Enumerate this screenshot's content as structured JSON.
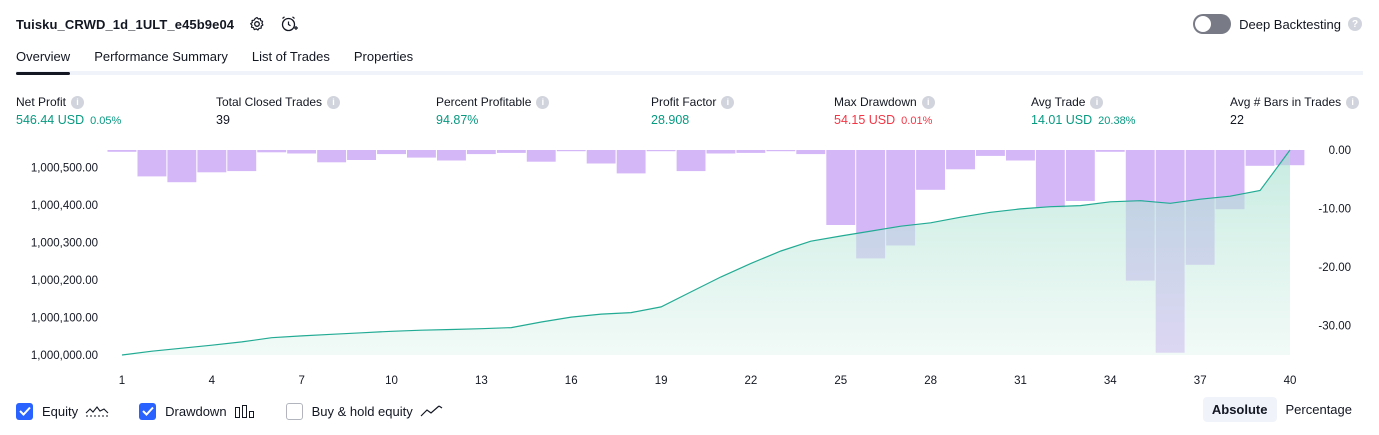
{
  "header": {
    "strategy_name": "Tuisku_CRWD_1d_1ULT_e45b9e04",
    "settings_icon": "gear-icon",
    "alert_icon": "alarm-clock-plus-icon"
  },
  "deep_backtesting": {
    "label": "Deep Backtesting",
    "enabled": false
  },
  "tabs": [
    {
      "label": "Overview",
      "active": true
    },
    {
      "label": "Performance Summary",
      "active": false
    },
    {
      "label": "List of Trades",
      "active": false
    },
    {
      "label": "Properties",
      "active": false
    }
  ],
  "metrics": {
    "net_profit": {
      "label": "Net Profit",
      "value": "546.44 USD",
      "pct": "0.05%"
    },
    "total_closed_trades": {
      "label": "Total Closed Trades",
      "value": "39"
    },
    "percent_profitable": {
      "label": "Percent Profitable",
      "value": "94.87%"
    },
    "profit_factor": {
      "label": "Profit Factor",
      "value": "28.908"
    },
    "max_drawdown": {
      "label": "Max Drawdown",
      "value": "54.15 USD",
      "pct": "0.01%"
    },
    "avg_trade": {
      "label": "Avg Trade",
      "value": "14.01 USD",
      "pct": "20.38%"
    },
    "avg_bars": {
      "label": "Avg # Bars in Trades",
      "value": "22"
    }
  },
  "colors": {
    "positive": "#089981",
    "negative": "#f23645",
    "equity_line": "#22ab94",
    "equity_fill": "#c8ebe1",
    "drawdown_bar": "#d4b7f7",
    "drawdown_bar_overlap": "#b0b5ea",
    "accent": "#2962ff"
  },
  "chart_data": {
    "type": "area",
    "x": [
      1,
      2,
      3,
      4,
      5,
      6,
      7,
      8,
      9,
      10,
      11,
      12,
      13,
      14,
      15,
      16,
      17,
      18,
      19,
      20,
      21,
      22,
      23,
      24,
      25,
      26,
      27,
      28,
      29,
      30,
      31,
      32,
      33,
      34,
      35,
      36,
      37,
      38,
      39,
      40
    ],
    "x_ticks": [
      "1",
      "4",
      "7",
      "10",
      "13",
      "16",
      "19",
      "22",
      "25",
      "28",
      "31",
      "34",
      "37",
      "40"
    ],
    "y_left_ticks": [
      "1,000,500.00",
      "1,000,400.00",
      "1,000,300.00",
      "1,000,200.00",
      "1,000,100.00",
      "1,000,000.00"
    ],
    "y_left_range": [
      1000000,
      1000500
    ],
    "y_right_ticks": [
      "0.00",
      "-10.00",
      "-20.00",
      "-30.00"
    ],
    "y_right_range": [
      -35,
      0
    ],
    "series": [
      {
        "name": "Equity",
        "kind": "area",
        "axis": "left",
        "values": [
          1000000,
          1000010,
          1000018,
          1000026,
          1000035,
          1000046,
          1000051,
          1000055,
          1000059,
          1000063,
          1000066,
          1000068,
          1000070,
          1000073,
          1000088,
          1000101,
          1000109,
          1000113,
          1000128,
          1000168,
          1000208,
          1000244,
          1000277,
          1000303,
          1000317,
          1000330,
          1000343,
          1000352,
          1000367,
          1000380,
          1000389,
          1000395,
          1000398,
          1000408,
          1000411,
          1000404,
          1000415,
          1000423,
          1000438,
          1000546
        ]
      },
      {
        "name": "Drawdown",
        "kind": "bar",
        "axis": "right",
        "values": [
          -0.3,
          -4.5,
          -5.5,
          -3.8,
          -3.6,
          -0.4,
          -0.6,
          -2.1,
          -1.7,
          -0.7,
          -1.3,
          -1.8,
          -0.7,
          -0.5,
          -2.0,
          -0.2,
          -2.3,
          -4.0,
          -0.2,
          -3.6,
          -0.6,
          -0.5,
          -0.2,
          -0.7,
          -12.8,
          -18.5,
          -16.3,
          -6.8,
          -3.3,
          -1.0,
          -1.8,
          -9.8,
          -8.7,
          -0.3,
          -22.3,
          -34.6,
          -19.6,
          -10.1,
          -2.7,
          -2.6
        ]
      }
    ],
    "legend": [
      {
        "name": "Equity",
        "checked": true,
        "icon": "equity-line-icon"
      },
      {
        "name": "Drawdown",
        "checked": true,
        "icon": "drawdown-bars-icon"
      },
      {
        "name": "Buy & hold equity",
        "checked": false,
        "icon": "buy-hold-line-icon"
      }
    ]
  },
  "modes": {
    "absolute": "Absolute",
    "percentage": "Percentage",
    "selected": "Absolute"
  }
}
